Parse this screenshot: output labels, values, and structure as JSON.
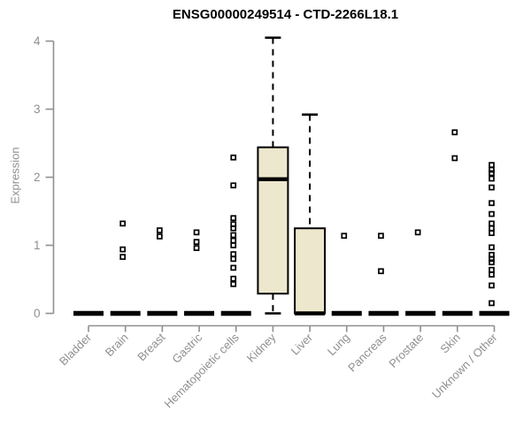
{
  "chart_data": {
    "type": "boxplot",
    "title": "ENSG00000249514 - CTD-2266L18.1",
    "ylabel": "Expression",
    "xlabel": "",
    "ylim": [
      0,
      4
    ],
    "yticks": [
      0,
      1,
      2,
      3,
      4
    ],
    "grid": false,
    "legend": "none",
    "categories": [
      "Bladder",
      "Brain",
      "Breast",
      "Gastric",
      "Hematopoietic cells",
      "Kidney",
      "Liver",
      "Lung",
      "Pancreas",
      "Prostate",
      "Skin",
      "Unknown / Other"
    ],
    "series": [
      {
        "category": "Bladder",
        "q1": 0,
        "median": 0,
        "q3": 0,
        "whisker_low": 0,
        "whisker_high": 0,
        "points": []
      },
      {
        "category": "Brain",
        "q1": 0,
        "median": 0,
        "q3": 0,
        "whisker_low": 0,
        "whisker_high": 0,
        "points": [
          1.32,
          0.94,
          0.83
        ]
      },
      {
        "category": "Breast",
        "q1": 0,
        "median": 0,
        "q3": 0,
        "whisker_low": 0,
        "whisker_high": 0,
        "points": [
          1.22,
          1.13
        ]
      },
      {
        "category": "Gastric",
        "q1": 0,
        "median": 0,
        "q3": 0,
        "whisker_low": 0,
        "whisker_high": 0,
        "points": [
          1.19,
          1.05,
          0.96
        ]
      },
      {
        "category": "Hematopoietic cells",
        "q1": 0,
        "median": 0,
        "q3": 0,
        "whisker_low": 0,
        "whisker_high": 0,
        "points": [
          2.29,
          1.88,
          1.4,
          1.31,
          1.25,
          1.15,
          1.07,
          1.0,
          0.87,
          0.8,
          0.67,
          0.51,
          0.43
        ]
      },
      {
        "category": "Kidney",
        "q1": 0.29,
        "median": 1.97,
        "q3": 2.44,
        "whisker_low": 0,
        "whisker_high": 4.05,
        "points": []
      },
      {
        "category": "Liver",
        "q1": 0,
        "median": 0,
        "q3": 1.25,
        "whisker_low": 0,
        "whisker_high": 2.92,
        "points": []
      },
      {
        "category": "Lung",
        "q1": 0,
        "median": 0,
        "q3": 0,
        "whisker_low": 0,
        "whisker_high": 0,
        "points": [
          1.14
        ]
      },
      {
        "category": "Pancreas",
        "q1": 0,
        "median": 0,
        "q3": 0,
        "whisker_low": 0,
        "whisker_high": 0,
        "points": [
          1.14,
          0.62
        ]
      },
      {
        "category": "Prostate",
        "q1": 0,
        "median": 0,
        "q3": 0,
        "whisker_low": 0,
        "whisker_high": 0,
        "points": [
          1.19
        ]
      },
      {
        "category": "Skin",
        "q1": 0,
        "median": 0,
        "q3": 0,
        "whisker_low": 0,
        "whisker_high": 0,
        "points": [
          2.66,
          2.28
        ]
      },
      {
        "category": "Unknown / Other",
        "q1": 0,
        "median": 0,
        "q3": 0,
        "whisker_low": 0,
        "whisker_high": 0,
        "points": [
          2.18,
          2.11,
          2.06,
          1.98,
          1.85,
          1.62,
          1.46,
          1.32,
          1.25,
          1.18,
          0.97,
          0.86,
          0.8,
          0.75,
          0.64,
          0.57,
          0.41,
          0.15
        ]
      }
    ],
    "colors": {
      "box_fill": "#ede7cd",
      "box_stroke": "#000000",
      "axis": "#8f8f8f",
      "tick_label": "#8f8f8f",
      "title": "#000000",
      "background": "#ffffff"
    }
  }
}
